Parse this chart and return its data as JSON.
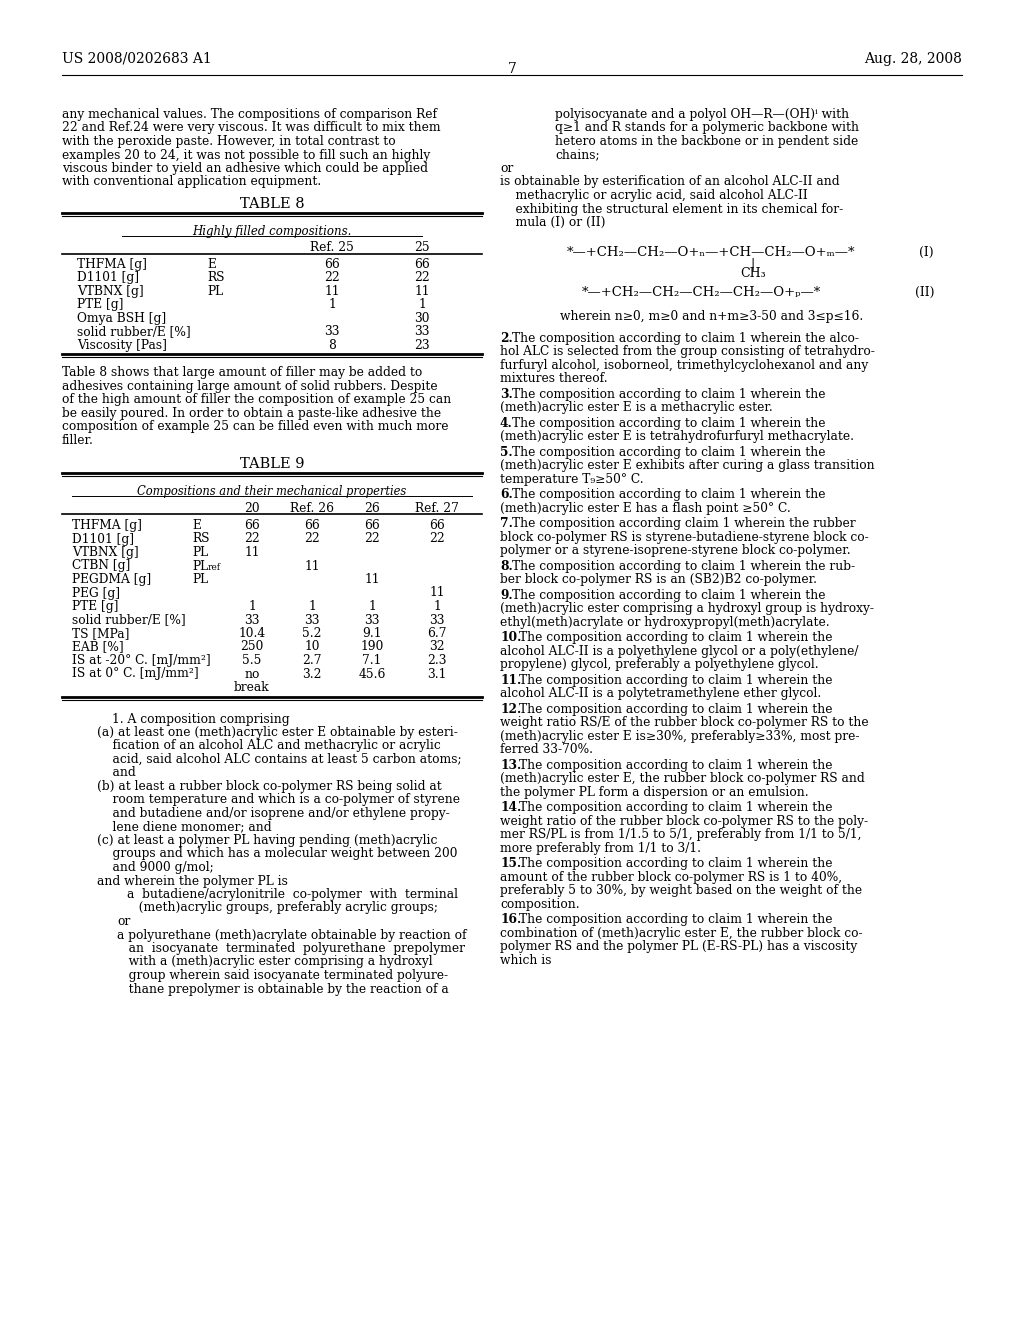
{
  "background_color": "#ffffff",
  "header_left": "US 2008/0202683 A1",
  "header_right": "Aug. 28, 2008",
  "page_number": "7",
  "body_fontsize": 8.8,
  "table_fontsize": 8.8,
  "header_fontsize": 10.0,
  "table_title_fontsize": 10.5,
  "intro_lines": [
    "any mechanical values. The compositions of comparison Ref",
    "22 and Ref.24 were very viscous. It was difficult to mix them",
    "with the peroxide paste. However, in total contrast to",
    "examples 20 to 24, it was not possible to fill such an highly",
    "viscous binder to yield an adhesive which could be applied",
    "with conventional application equipment."
  ],
  "table8_title": "TABLE 8",
  "table8_subtitle": "Highly filled compositions.",
  "table8_col_headers": [
    "",
    "",
    "Ref. 25",
    "25"
  ],
  "table8_rows": [
    [
      "THFMA [g]",
      "E",
      "66",
      "66"
    ],
    [
      "D1101 [g]",
      "RS",
      "22",
      "22"
    ],
    [
      "VTBNX [g]",
      "PL",
      "11",
      "11"
    ],
    [
      "PTE [g]",
      "",
      "1",
      "1"
    ],
    [
      "Omya BSH [g]",
      "",
      "",
      "30"
    ],
    [
      "solid rubber/E [%]",
      "",
      "33",
      "33"
    ],
    [
      "Viscosity [Pas]",
      "",
      "8",
      "23"
    ]
  ],
  "after8_lines": [
    "Table 8 shows that large amount of filler may be added to",
    "adhesives containing large amount of solid rubbers. Despite",
    "of the high amount of filler the composition of example 25 can",
    "be easily poured. In order to obtain a paste-like adhesive the",
    "composition of example 25 can be filled even with much more",
    "filler."
  ],
  "table9_title": "TABLE 9",
  "table9_subtitle": "Compositions and their mechanical properties",
  "table9_col_headers": [
    "",
    "",
    "20",
    "Ref. 26",
    "26",
    "Ref. 27"
  ],
  "table9_rows": [
    [
      "THFMA [g]",
      "E",
      "66",
      "66",
      "66",
      "66"
    ],
    [
      "D1101 [g]",
      "RS",
      "22",
      "22",
      "22",
      "22"
    ],
    [
      "VTBNX [g]",
      "PL",
      "11",
      "",
      "",
      ""
    ],
    [
      "CTBN [g]",
      "PL_ref",
      "",
      "11",
      "",
      ""
    ],
    [
      "PEGDMA [g]",
      "PL",
      "",
      "",
      "11",
      ""
    ],
    [
      "PEG [g]",
      "",
      "",
      "",
      "",
      "11"
    ],
    [
      "PTE [g]",
      "",
      "1",
      "1",
      "1",
      "1"
    ],
    [
      "solid rubber/E [%]",
      "",
      "33",
      "33",
      "33",
      "33"
    ],
    [
      "TS [MPa]",
      "",
      "10.4",
      "5.2",
      "9.1",
      "6.7"
    ],
    [
      "EAB [%]",
      "",
      "250",
      "10",
      "190",
      "32"
    ],
    [
      "IS at -20° C. [mJ/mm²]",
      "",
      "5.5",
      "2.7",
      "7.1",
      "2.3"
    ],
    [
      "IS at 0° C. [mJ/mm²]",
      "",
      "no",
      "3.2",
      "45.6",
      "3.1"
    ],
    [
      "",
      "",
      "break",
      "",
      "",
      ""
    ]
  ],
  "left_claims": [
    {
      "type": "heading",
      "text": "1. A composition comprising"
    },
    {
      "type": "item",
      "label": "(a)",
      "lines": [
        "(a) at least one (meth)acrylic ester E obtainable by esteri-",
        "    fication of an alcohol ALC and methacrylic or acrylic",
        "    acid, said alcohol ALC contains at least 5 carbon atoms;",
        "    and"
      ]
    },
    {
      "type": "item",
      "label": "(b)",
      "lines": [
        "(b) at least a rubber block co-polymer RS being solid at",
        "    room temperature and which is a co-polymer of styrene",
        "    and butadiene and/or isoprene and/or ethylene propy-",
        "    lene diene monomer; and"
      ]
    },
    {
      "type": "item",
      "label": "(c)",
      "lines": [
        "(c) at least a polymer PL having pending (meth)acrylic",
        "    groups and which has a molecular weight between 200",
        "    and 9000 g/mol;"
      ]
    },
    {
      "type": "plain",
      "lines": [
        "and wherein the polymer PL is"
      ]
    },
    {
      "type": "subitem",
      "lines": [
        "    a  butadiene/acrylonitrile  co-polymer  with  terminal",
        "       (meth)acrylic groups, preferably acrylic groups;"
      ]
    },
    {
      "type": "plain",
      "lines": [
        "    or"
      ]
    },
    {
      "type": "subitem",
      "lines": [
        "    a polyurethane (meth)acrylate obtainable by reaction of",
        "       an  isocyanate  terminated  polyurethane  prepolymer",
        "       with a (meth)acrylic ester comprising a hydroxyl",
        "       group wherein said isocyanate terminated polyure-",
        "       thane prepolymer is obtainable by the reaction of a"
      ]
    }
  ],
  "right_col_intro": [
    "polyisocyanate and a polyol OH—R—(OH)ⁱ with",
    "q≥1 and R stands for a polymeric backbone with",
    "hetero atoms in the backbone or in pendent side",
    "chains;"
  ],
  "right_col_or": "or",
  "right_col_ester": [
    "is obtainable by esterification of an alcohol ALC-II and",
    "    methacrylic or acrylic acid, said alcohol ALC-II",
    "    exhibiting the structural element in its chemical for-",
    "    mula (I) or (II)"
  ],
  "right_claims": [
    {
      "num": "2",
      "lines": [
        "2. The composition according to claim 1 wherein the alco-",
        "hol ALC is selected from the group consisting of tetrahydro-",
        "furfuryl alcohol, isoborneol, trimethylcyclohexanol and any",
        "mixtures thereof."
      ]
    },
    {
      "num": "3",
      "lines": [
        "3. The composition according to claim 1 wherein the",
        "(meth)acrylic ester E is a methacrylic ester."
      ]
    },
    {
      "num": "4",
      "lines": [
        "4. The composition according to claim 1 wherein the",
        "(meth)acrylic ester E is tetrahydrofurfuryl methacrylate."
      ]
    },
    {
      "num": "5",
      "lines": [
        "5. The composition according to claim 1 wherein the",
        "(meth)acrylic ester E exhibits after curing a glass transition",
        "temperature T₉≥50° C."
      ]
    },
    {
      "num": "6",
      "lines": [
        "6. The composition according to claim 1 wherein the",
        "(meth)acrylic ester E has a flash point ≥50° C."
      ]
    },
    {
      "num": "7",
      "lines": [
        "7. The composition according claim 1 wherein the rubber",
        "block co-polymer RS is styrene-butadiene-styrene block co-",
        "polymer or a styrene-isoprene-styrene block co-polymer."
      ]
    },
    {
      "num": "8",
      "lines": [
        "8. The composition according to claim 1 wherein the rub-",
        "ber block co-polymer RS is an (SB2)B2 co-polymer."
      ]
    },
    {
      "num": "9",
      "lines": [
        "9. The composition according to claim 1 wherein the",
        "(meth)acrylic ester comprising a hydroxyl group is hydroxy-",
        "ethyl(meth)acrylate or hydroxypropyl(meth)acrylate."
      ]
    },
    {
      "num": "10",
      "lines": [
        "10. The composition according to claim 1 wherein the",
        "alcohol ALC-II is a polyethylene glycol or a poly(ethylene/",
        "propylene) glycol, preferably a polyethylene glycol."
      ]
    },
    {
      "num": "11",
      "lines": [
        "11. The composition according to claim 1 wherein the",
        "alcohol ALC-II is a polytetramethylene ether glycol."
      ]
    },
    {
      "num": "12",
      "lines": [
        "12. The composition according to claim 1 wherein the",
        "weight ratio RS/E of the rubber block co-polymer RS to the",
        "(meth)acrylic ester E is≥30%, preferably≥33%, most pre-",
        "ferred 33-70%."
      ]
    },
    {
      "num": "13",
      "lines": [
        "13. The composition according to claim 1 wherein the",
        "(meth)acrylic ester E, the rubber block co-polymer RS and",
        "the polymer PL form a dispersion or an emulsion."
      ]
    },
    {
      "num": "14",
      "lines": [
        "14. The composition according to claim 1 wherein the",
        "weight ratio of the rubber block co-polymer RS to the poly-",
        "mer RS/PL is from 1/1.5 to 5/1, preferably from 1/1 to 5/1,",
        "more preferably from 1/1 to 3/1."
      ]
    },
    {
      "num": "15",
      "lines": [
        "15. The composition according to claim 1 wherein the",
        "amount of the rubber block co-polymer RS is 1 to 40%,",
        "preferably 5 to 30%, by weight based on the weight of the",
        "composition."
      ]
    },
    {
      "num": "16",
      "lines": [
        "16. The composition according to claim 1 wherein the",
        "combination of (meth)acrylic ester E, the rubber block co-",
        "polymer RS and the polymer PL (E-RS-PL) has a viscosity",
        "which is"
      ]
    }
  ]
}
